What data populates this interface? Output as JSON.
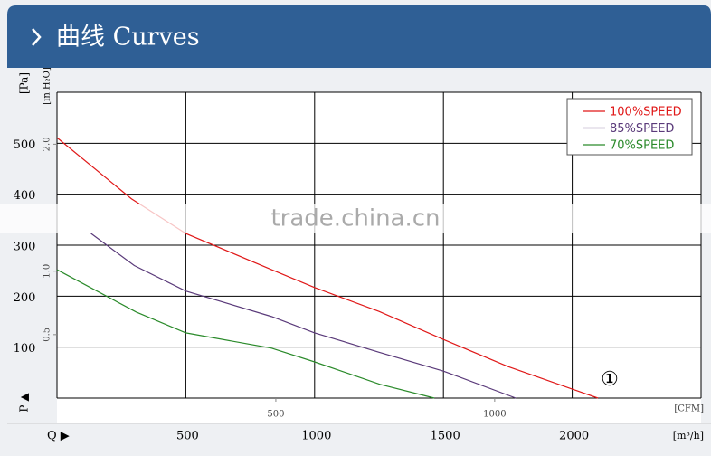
{
  "chart_data": {
    "type": "line",
    "title": "曲线 Curves",
    "y_label": "[Pa]",
    "y2_label": "[in H₂O]",
    "x_label": "[m³/h]",
    "x2_label": "[CFM]",
    "y_axis_symbol": "P ▲",
    "x_axis_symbol": "Q ▶",
    "annotation": "①",
    "watermark": "trade.china.cn",
    "xlim": [
      0,
      2500
    ],
    "xticks": [
      500,
      1000,
      1500,
      2000
    ],
    "x2lim": [
      0,
      1471.5
    ],
    "x2ticks": [
      500,
      1000
    ],
    "ylim": [
      0,
      600
    ],
    "yticks": [
      100,
      200,
      300,
      400,
      500
    ],
    "y2lim": [
      0,
      2.409
    ],
    "y2ticks": [
      0.5,
      {
        "value": 1,
        "label": "1.0"
      },
      {
        "value": 2,
        "label": "2.0"
      }
    ],
    "grid": true,
    "legend": "top-right",
    "series": [
      {
        "name": "100%SPEED",
        "color": "#e01818",
        "x": [
          0,
          289,
          500,
          833,
          1000,
          1250,
          1500,
          1750,
          2100
        ],
        "values": [
          511,
          391,
          323,
          252,
          217,
          170,
          115,
          62,
          0
        ]
      },
      {
        "name": "85%SPEED",
        "color": "#5a3a7a",
        "x": [
          132,
          300,
          500,
          833,
          1000,
          1250,
          1500,
          1781
        ],
        "values": [
          323,
          260,
          210,
          160,
          128,
          90,
          53,
          0
        ]
      },
      {
        "name": "70%SPEED",
        "color": "#2a8a2a",
        "x": [
          0,
          307,
          500,
          833,
          1000,
          1254,
          1465
        ],
        "values": [
          252,
          169,
          128,
          98,
          71,
          27,
          0
        ]
      }
    ]
  }
}
